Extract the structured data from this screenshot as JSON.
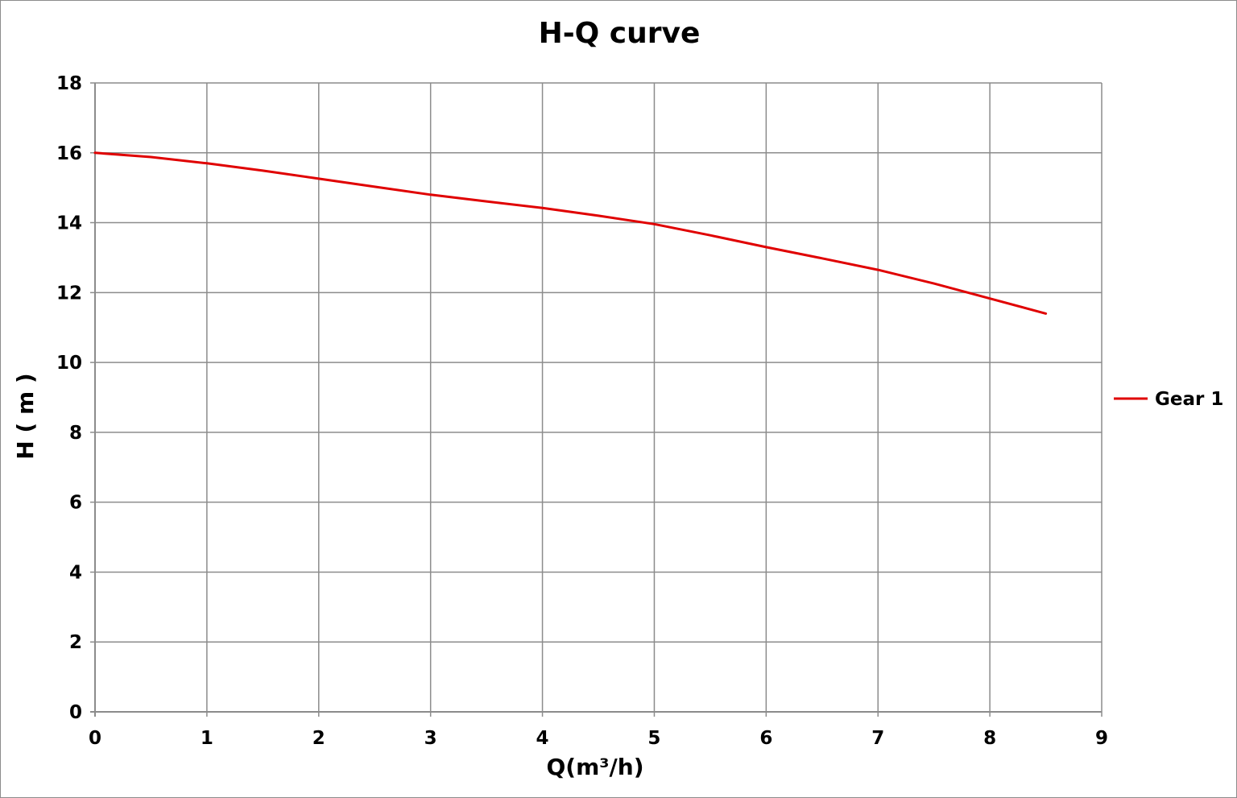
{
  "chart_data": {
    "type": "line",
    "title": "H-Q  curve",
    "xlabel": "Q(m³/h)",
    "ylabel": "H ( m )",
    "xlim": [
      0,
      9
    ],
    "ylim": [
      0,
      18
    ],
    "x_ticks": [
      0,
      1,
      2,
      3,
      4,
      5,
      6,
      7,
      8,
      9
    ],
    "y_ticks": [
      0,
      2,
      4,
      6,
      8,
      10,
      12,
      14,
      16,
      18
    ],
    "grid": true,
    "legend_position": "right",
    "series": [
      {
        "name": "Gear 1",
        "color": "#e00000",
        "x": [
          0,
          0.5,
          1,
          1.5,
          2,
          2.5,
          3,
          3.5,
          4,
          4.5,
          5,
          5.5,
          6,
          6.5,
          7,
          7.5,
          8,
          8.5
        ],
        "y": [
          16.0,
          15.88,
          15.7,
          15.49,
          15.26,
          15.03,
          14.8,
          14.61,
          14.42,
          14.2,
          13.96,
          13.64,
          13.3,
          12.98,
          12.65,
          12.26,
          11.83,
          11.4
        ]
      }
    ]
  }
}
